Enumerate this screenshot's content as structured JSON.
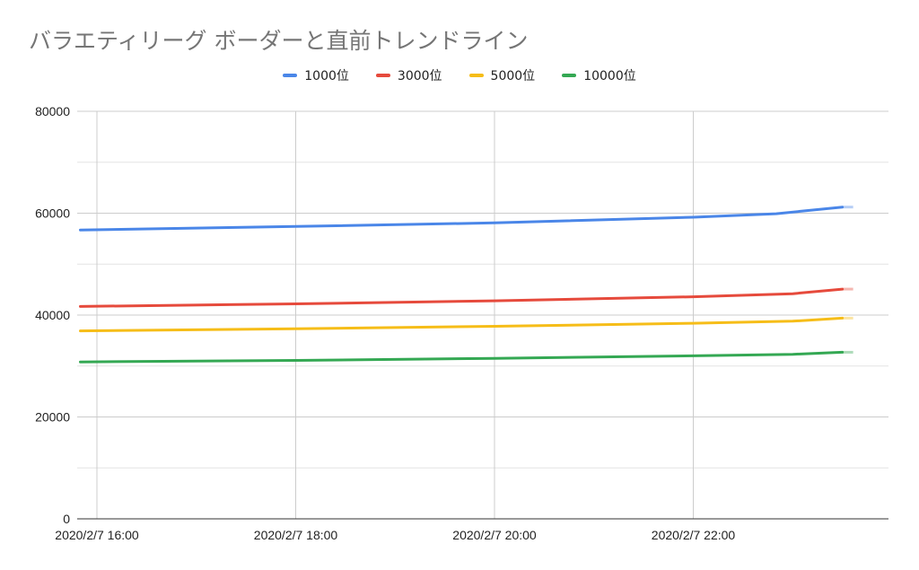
{
  "chart_data": {
    "type": "line",
    "title": "バラエティリーグ ボーダーと直前トレンドライン",
    "legend_position": "top",
    "grid": true,
    "x_tick_labels": [
      "2020/2/7 16:00",
      "2020/2/7 18:00",
      "2020/2/7 20:00",
      "2020/2/7 22:00"
    ],
    "y_tick_labels": [
      "0",
      "20000",
      "40000",
      "60000",
      "80000"
    ],
    "ylim": [
      0,
      80000
    ],
    "series": [
      {
        "name": "1000位",
        "color": "#4a86e8",
        "values": [
          [
            "2020/2/7 15:50",
            56700
          ],
          [
            "2020/2/7 18:00",
            57400
          ],
          [
            "2020/2/7 20:00",
            58100
          ],
          [
            "2020/2/7 22:00",
            59200
          ],
          [
            "2020/2/7 22:50",
            59900
          ],
          [
            "2020/2/7 23:30",
            61200
          ]
        ]
      },
      {
        "name": "3000位",
        "color": "#e64a3c",
        "values": [
          [
            "2020/2/7 15:50",
            41700
          ],
          [
            "2020/2/7 18:00",
            42200
          ],
          [
            "2020/2/7 20:00",
            42800
          ],
          [
            "2020/2/7 22:00",
            43600
          ],
          [
            "2020/2/7 23:00",
            44200
          ],
          [
            "2020/2/7 23:30",
            45100
          ]
        ]
      },
      {
        "name": "5000位",
        "color": "#f6bd18",
        "values": [
          [
            "2020/2/7 15:50",
            36900
          ],
          [
            "2020/2/7 18:00",
            37300
          ],
          [
            "2020/2/7 20:00",
            37800
          ],
          [
            "2020/2/7 22:00",
            38400
          ],
          [
            "2020/2/7 23:00",
            38800
          ],
          [
            "2020/2/7 23:30",
            39400
          ]
        ]
      },
      {
        "name": "10000位",
        "color": "#34a853",
        "values": [
          [
            "2020/2/7 15:50",
            30800
          ],
          [
            "2020/2/7 18:00",
            31100
          ],
          [
            "2020/2/7 20:00",
            31500
          ],
          [
            "2020/2/7 22:00",
            32000
          ],
          [
            "2020/2/7 23:00",
            32300
          ],
          [
            "2020/2/7 23:30",
            32700
          ]
        ]
      }
    ]
  }
}
